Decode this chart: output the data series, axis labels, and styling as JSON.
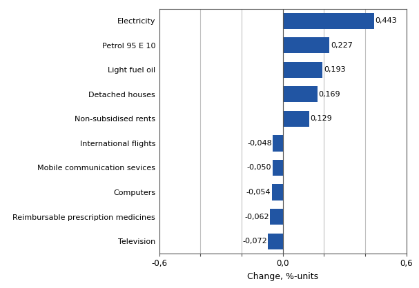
{
  "categories": [
    "Television",
    "Reimbursable prescription medicines",
    "Computers",
    "Mobile communication sevices",
    "International flights",
    "Non-subsidised rents",
    "Detached houses",
    "Light fuel oil",
    "Petrol 95 E 10",
    "Electricity"
  ],
  "values": [
    -0.072,
    -0.062,
    -0.054,
    -0.05,
    -0.048,
    0.129,
    0.169,
    0.193,
    0.227,
    0.443
  ],
  "bar_color": "#2155a3",
  "xlabel": "Change, %-units",
  "xlim": [
    -0.6,
    0.6
  ],
  "xticks": [
    -0.6,
    -0.4,
    -0.2,
    0.0,
    0.2,
    0.4,
    0.6
  ],
  "xticklabels_shown": [
    "-0,6",
    "",
    "",
    "0,0",
    "",
    "",
    "0,6"
  ],
  "grid_color": "#c0c0c0",
  "bar_labels": [
    "-0,072",
    "-0,062",
    "-0,054",
    "-0,050",
    "-0,048",
    "0,129",
    "0,169",
    "0,193",
    "0,227",
    "0,443"
  ],
  "label_offsets": [
    -0.005,
    -0.005,
    -0.005,
    -0.005,
    -0.005,
    0.005,
    0.005,
    0.005,
    0.005,
    0.005
  ],
  "label_ha": [
    "right",
    "right",
    "right",
    "right",
    "right",
    "left",
    "left",
    "left",
    "left",
    "left"
  ],
  "spine_color": "#555555",
  "bar_height": 0.65,
  "fontsize_labels": 8.0,
  "fontsize_ticks": 8.5,
  "fontsize_xlabel": 9.0
}
